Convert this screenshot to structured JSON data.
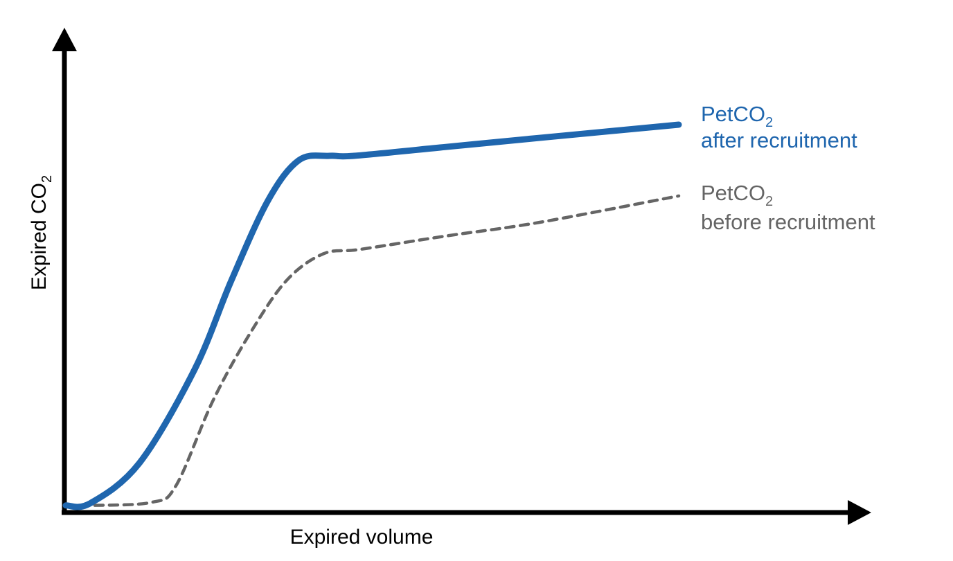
{
  "chart_data": {
    "type": "line",
    "xlabel": "Expired volume",
    "ylabel": {
      "main": "Expired CO",
      "sub": "2"
    },
    "xlim": [
      0,
      100
    ],
    "ylim": [
      0,
      100
    ],
    "grid": false,
    "legend": "right",
    "colors": {
      "after": "#1f66ae",
      "before": "#656565",
      "axis": "#000000"
    },
    "series": [
      {
        "key": "after",
        "name_main": "PetCO",
        "name_sub": "2",
        "name_line2": "after recruitment",
        "line_style": "solid",
        "x": [
          0,
          4,
          12,
          21,
          27,
          33,
          38,
          43,
          47,
          62,
          77,
          100
        ],
        "y": [
          0.5,
          1,
          10,
          31,
          51,
          69,
          78,
          79,
          79,
          81,
          83,
          86
        ]
      },
      {
        "key": "before",
        "name_main": "PetCO",
        "name_sub": "2",
        "name_line2": "before recruitment",
        "line_style": "dashed",
        "x": [
          0,
          4,
          14,
          18,
          24,
          30,
          36,
          42,
          48,
          62,
          77,
          100
        ],
        "y": [
          0.5,
          0.5,
          1.2,
          5,
          24,
          39,
          51,
          57,
          58,
          61,
          64,
          70
        ]
      }
    ]
  }
}
